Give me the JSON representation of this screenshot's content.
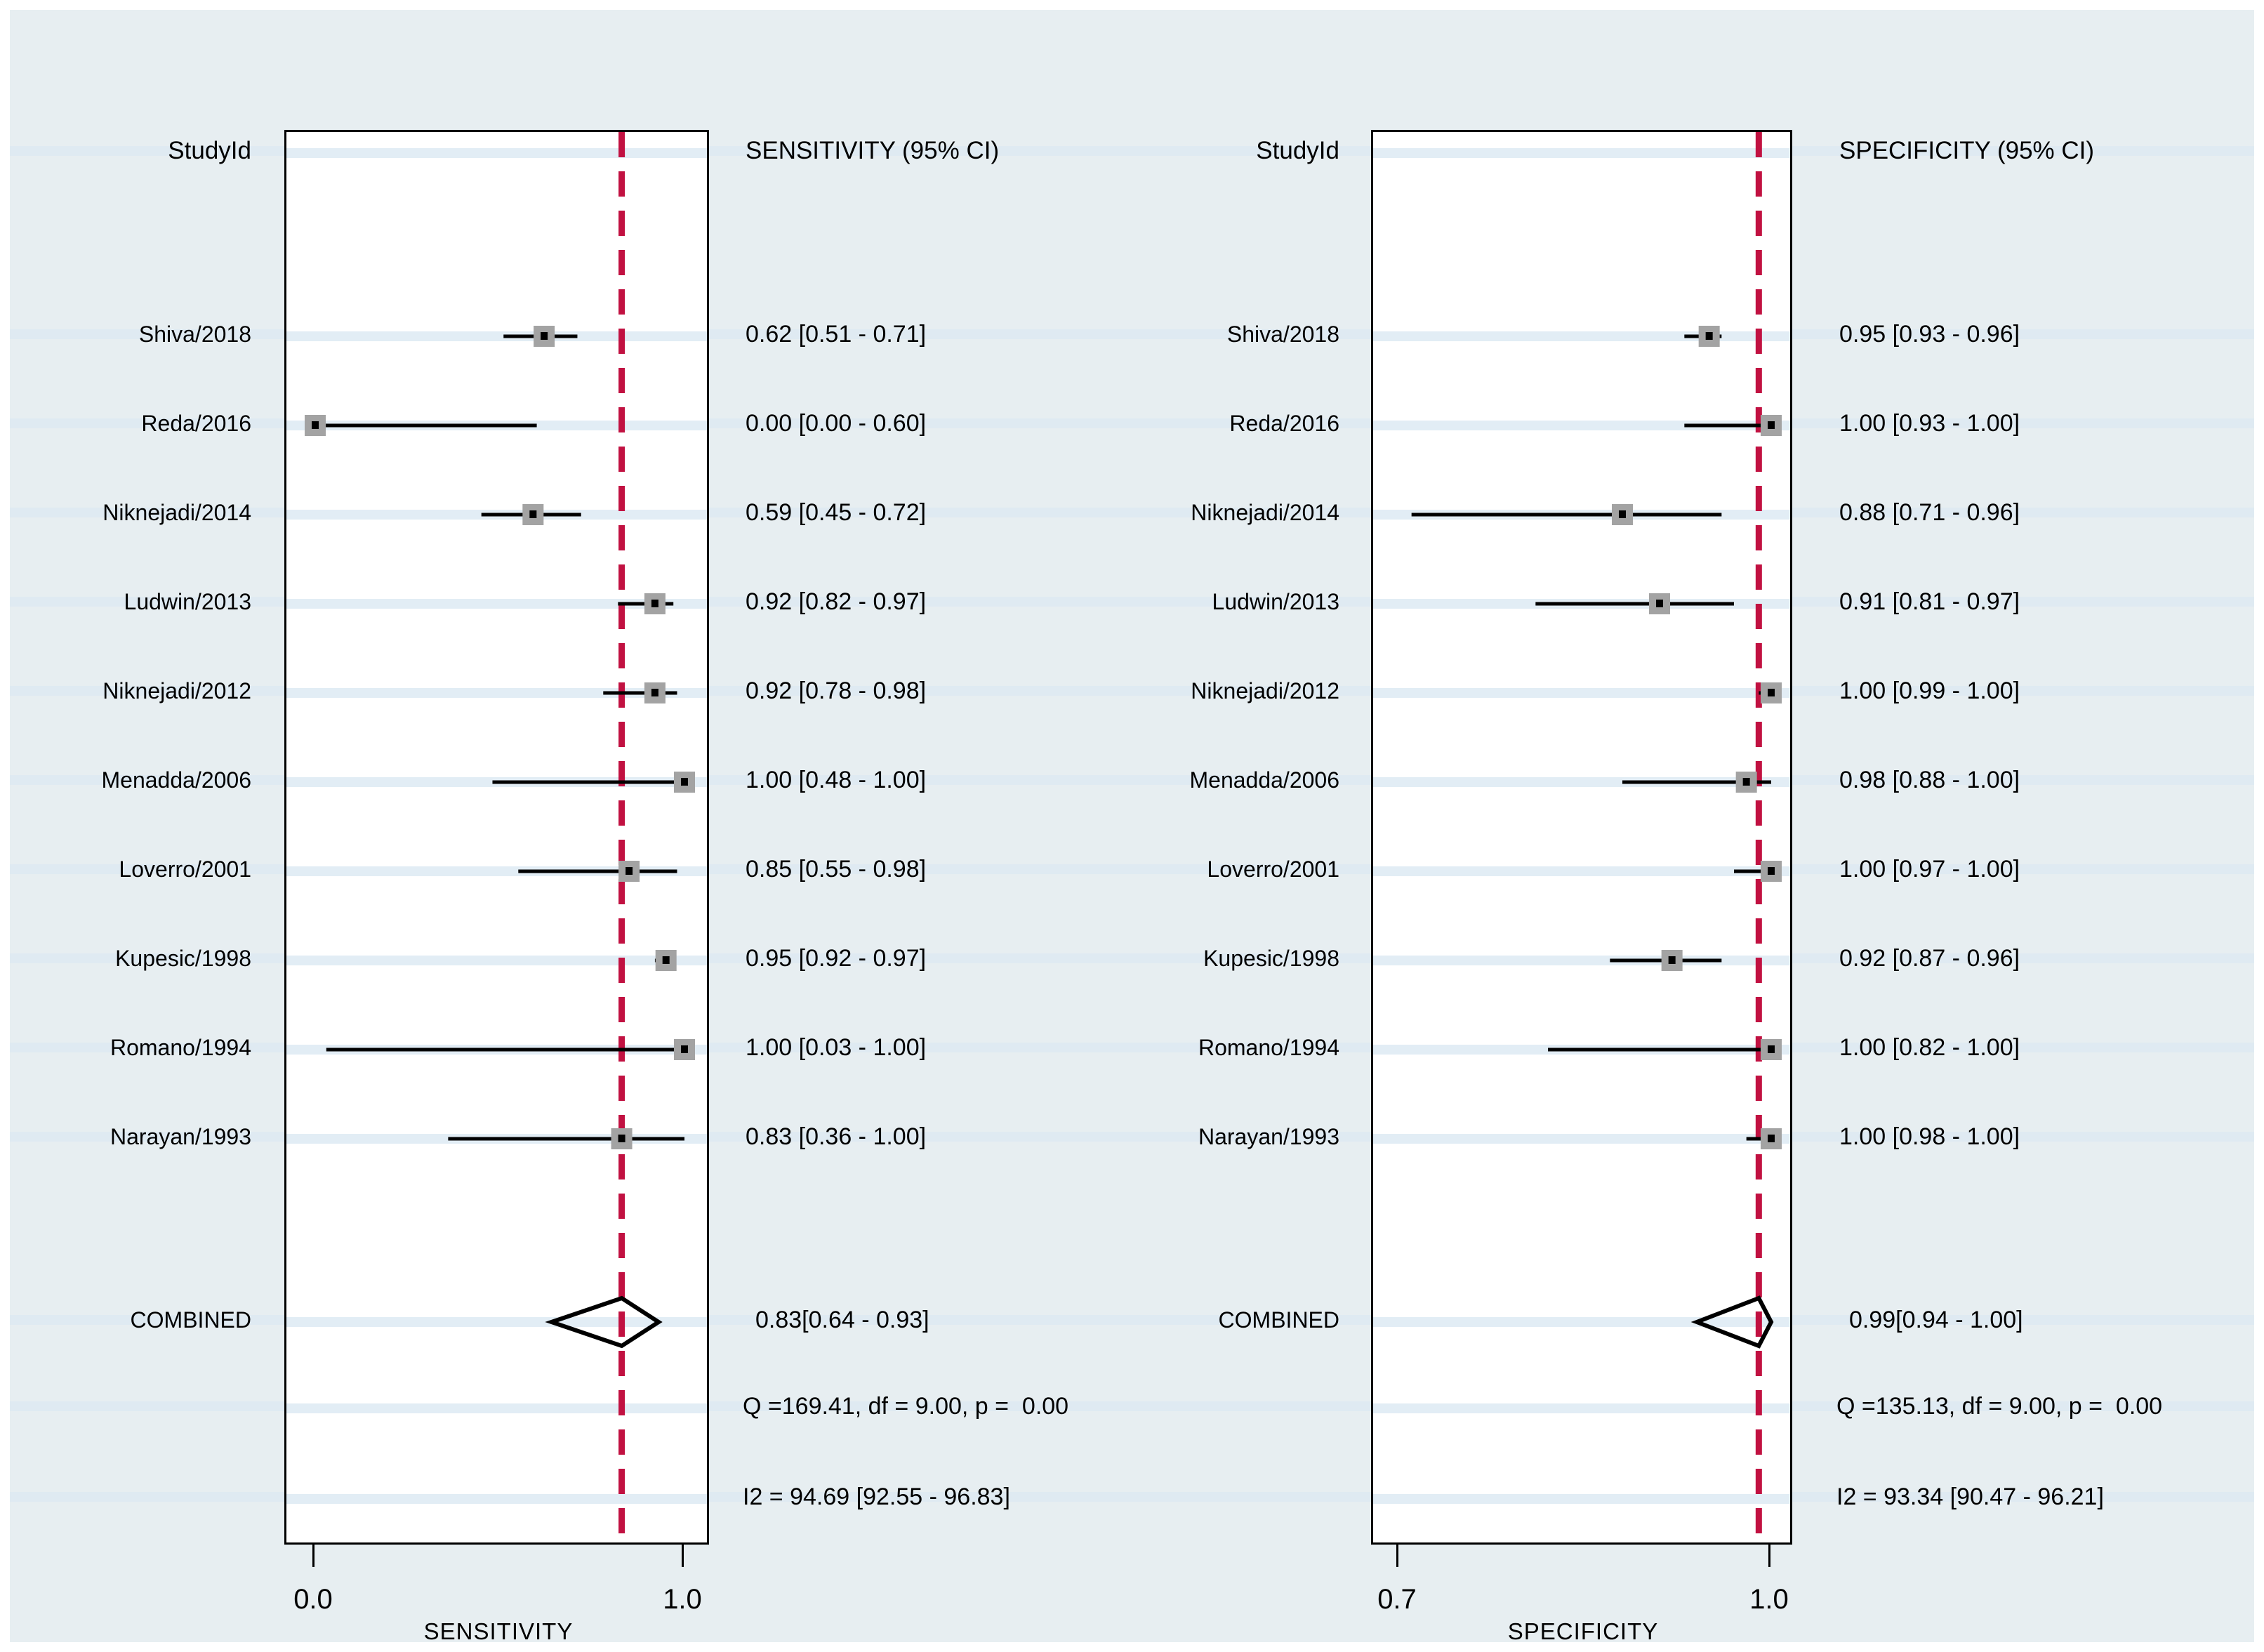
{
  "figure": {
    "canvas_color": "#e7eef1",
    "stripe_color": "#dfeaf2",
    "plot_background": "#ffffff",
    "border_color": "#000000",
    "ref_line_color": "#c11141",
    "marker_color": "#a3a3a3",
    "marker_dot_color": "#000000",
    "text_color": "#000000"
  },
  "chart_data": [
    {
      "type": "forest",
      "panel": "sensitivity",
      "study_header": "StudyId",
      "value_header": "SENSITIVITY (95% CI)",
      "xlabel": "SENSITIVITY",
      "xtick_labels": [
        "0.0",
        "1.0"
      ],
      "xticks": [
        0.0,
        1.0
      ],
      "xlim": [
        -0.078,
        1.072
      ],
      "ref_line": 0.83,
      "legend": "none",
      "grid": "row-stripes",
      "studies": [
        {
          "id": "Shiva/2018",
          "est": 0.62,
          "lo": 0.51,
          "hi": 0.71,
          "text": "0.62 [0.51 - 0.71]"
        },
        {
          "id": "Reda/2016",
          "est": 0.0,
          "lo": 0.0,
          "hi": 0.6,
          "text": "0.00 [0.00 - 0.60]"
        },
        {
          "id": "Niknejadi/2014",
          "est": 0.59,
          "lo": 0.45,
          "hi": 0.72,
          "text": "0.59 [0.45 - 0.72]"
        },
        {
          "id": "Ludwin/2013",
          "est": 0.92,
          "lo": 0.82,
          "hi": 0.97,
          "text": "0.92 [0.82 - 0.97]"
        },
        {
          "id": "Niknejadi/2012",
          "est": 0.92,
          "lo": 0.78,
          "hi": 0.98,
          "text": "0.92 [0.78 - 0.98]"
        },
        {
          "id": "Menadda/2006",
          "est": 1.0,
          "lo": 0.48,
          "hi": 1.0,
          "text": "1.00 [0.48 - 1.00]"
        },
        {
          "id": "Loverro/2001",
          "est": 0.85,
          "lo": 0.55,
          "hi": 0.98,
          "text": "0.85 [0.55 - 0.98]"
        },
        {
          "id": "Kupesic/1998",
          "est": 0.95,
          "lo": 0.92,
          "hi": 0.97,
          "text": "0.95 [0.92 - 0.97]"
        },
        {
          "id": "Romano/1994",
          "est": 1.0,
          "lo": 0.03,
          "hi": 1.0,
          "text": "1.00 [0.03 - 1.00]"
        },
        {
          "id": "Narayan/1993",
          "est": 0.83,
          "lo": 0.36,
          "hi": 1.0,
          "text": "0.83 [0.36 - 1.00]"
        }
      ],
      "combined": {
        "label": "COMBINED",
        "est": 0.83,
        "lo": 0.64,
        "hi": 0.93,
        "text": "0.83[0.64 - 0.93]"
      },
      "heterogeneity": {
        "q_text": "Q =169.41, df = 9.00, p =  0.00",
        "i2_text": "I2 = 94.69 [92.55 - 96.83]"
      }
    },
    {
      "type": "forest",
      "panel": "specificity",
      "study_header": "StudyId",
      "value_header": "SPECIFICITY (95% CI)",
      "xlabel": "SPECIFICITY",
      "xtick_labels": [
        "0.7",
        "1.0"
      ],
      "xticks": [
        0.7,
        1.0
      ],
      "xlim": [
        0.679,
        1.021
      ],
      "ref_line": 0.99,
      "legend": "none",
      "grid": "row-stripes",
      "studies": [
        {
          "id": "Shiva/2018",
          "est": 0.95,
          "lo": 0.93,
          "hi": 0.96,
          "text": "0.95 [0.93 - 0.96]"
        },
        {
          "id": "Reda/2016",
          "est": 1.0,
          "lo": 0.93,
          "hi": 1.0,
          "text": "1.00 [0.93 - 1.00]"
        },
        {
          "id": "Niknejadi/2014",
          "est": 0.88,
          "lo": 0.71,
          "hi": 0.96,
          "text": "0.88 [0.71 - 0.96]"
        },
        {
          "id": "Ludwin/2013",
          "est": 0.91,
          "lo": 0.81,
          "hi": 0.97,
          "text": "0.91 [0.81 - 0.97]"
        },
        {
          "id": "Niknejadi/2012",
          "est": 1.0,
          "lo": 0.99,
          "hi": 1.0,
          "text": "1.00 [0.99 - 1.00]"
        },
        {
          "id": "Menadda/2006",
          "est": 0.98,
          "lo": 0.88,
          "hi": 1.0,
          "text": "0.98 [0.88 - 1.00]"
        },
        {
          "id": "Loverro/2001",
          "est": 1.0,
          "lo": 0.97,
          "hi": 1.0,
          "text": "1.00 [0.97 - 1.00]"
        },
        {
          "id": "Kupesic/1998",
          "est": 0.92,
          "lo": 0.87,
          "hi": 0.96,
          "text": "0.92 [0.87 - 0.96]"
        },
        {
          "id": "Romano/1994",
          "est": 1.0,
          "lo": 0.82,
          "hi": 1.0,
          "text": "1.00 [0.82 - 1.00]"
        },
        {
          "id": "Narayan/1993",
          "est": 1.0,
          "lo": 0.98,
          "hi": 1.0,
          "text": "1.00 [0.98 - 1.00]"
        }
      ],
      "combined": {
        "label": "COMBINED",
        "est": 0.99,
        "lo": 0.94,
        "hi": 1.0,
        "text": "0.99[0.94 - 1.00]"
      },
      "heterogeneity": {
        "q_text": "Q =135.13, df = 9.00, p =  0.00",
        "i2_text": "I2 = 93.34 [90.47 - 96.21]"
      }
    }
  ]
}
